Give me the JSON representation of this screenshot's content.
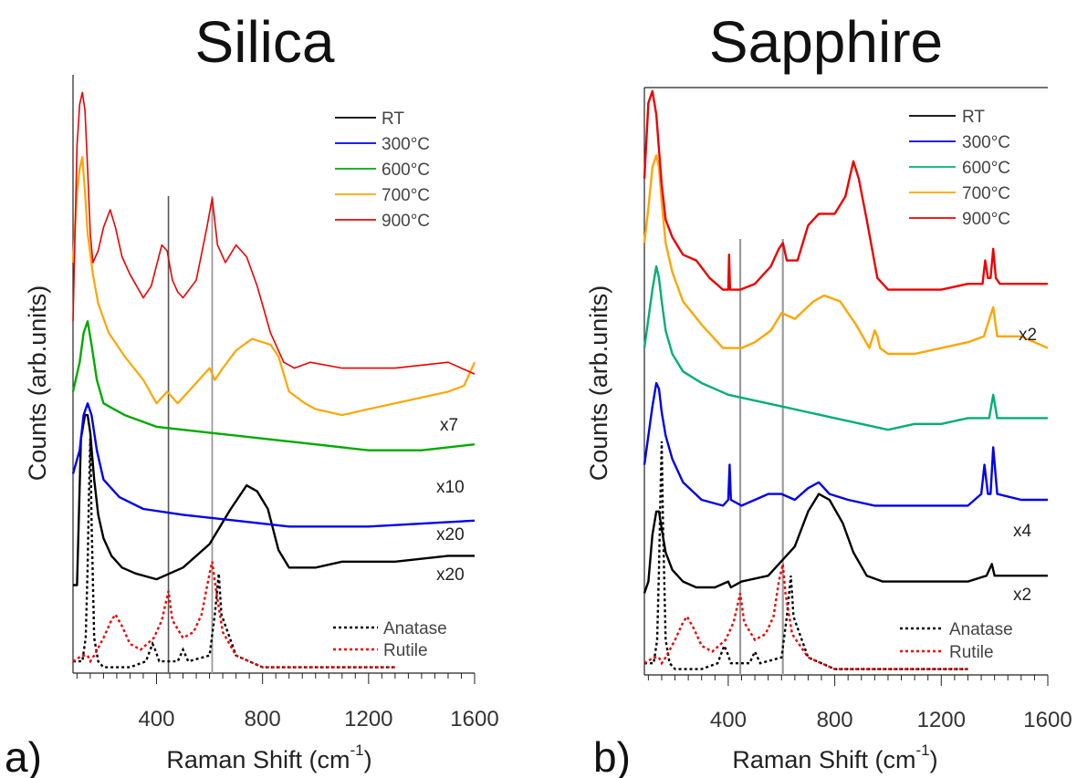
{
  "chart_data": [
    {
      "type": "line",
      "panel": "a)",
      "title": "Silica",
      "xlabel": "Raman Shift (cm",
      "xlabel_sup": "-1",
      "xlabel_end": ")",
      "ylabel": "Counts (arb.units)",
      "xlim": [
        85,
        1600
      ],
      "ylim": [
        0,
        100
      ],
      "x_ticks": [
        400,
        800,
        1200,
        1600
      ],
      "y_ticks": [],
      "frame": "left-bottom",
      "grid": false,
      "reference_lines_x": [
        445,
        610
      ],
      "reference_line_colors": [
        "#555555",
        "#9a9a9a"
      ],
      "legend": {
        "position": "top-right",
        "entries": [
          {
            "label": "RT",
            "color": "#000000"
          },
          {
            "label": "300°C",
            "color": "#0000ee"
          },
          {
            "label": "600°C",
            "color": "#00aa00"
          },
          {
            "label": "700°C",
            "color": "#ffa500"
          },
          {
            "label": "900°C",
            "color": "#ee0000"
          }
        ]
      },
      "reference_legend": {
        "position": "bottom-right",
        "entries": [
          {
            "label": "Anatase",
            "color": "#000000"
          },
          {
            "label": "Rutile",
            "color": "#ee0000"
          }
        ]
      },
      "series": [
        {
          "name": "RT",
          "color": "#000000",
          "scale_label": "x20",
          "x": [
            85,
            100,
            115,
            130,
            140,
            150,
            165,
            180,
            200,
            230,
            270,
            320,
            400,
            500,
            600,
            680,
            740,
            780,
            820,
            860,
            900,
            950,
            1000,
            1100,
            1300,
            1500,
            1600
          ],
          "y": [
            15,
            15,
            40,
            44,
            44,
            41,
            33,
            27,
            23,
            20,
            18,
            17,
            16,
            18,
            22,
            28,
            32,
            31,
            28,
            21,
            18,
            18,
            18,
            19,
            19,
            20,
            20
          ]
        },
        {
          "name": "300°C",
          "color": "#0000ee",
          "scale_label": "x20",
          "x": [
            85,
            110,
            125,
            140,
            155,
            175,
            200,
            260,
            350,
            500,
            700,
            900,
            1200,
            1600
          ],
          "y": [
            34,
            38,
            44,
            46,
            44,
            38,
            33,
            30,
            28,
            27,
            26,
            25,
            25,
            26
          ]
        },
        {
          "name": "600°C",
          "color": "#00aa00",
          "scale_label": "x10",
          "x": [
            85,
            110,
            125,
            140,
            155,
            175,
            200,
            280,
            400,
            600,
            800,
            1000,
            1200,
            1400,
            1600
          ],
          "y": [
            48,
            53,
            58,
            60,
            56,
            50,
            46,
            44,
            42,
            41,
            40,
            39,
            38,
            38,
            39
          ]
        },
        {
          "name": "700°C",
          "color": "#ffa500",
          "scale_label": "x7",
          "x": [
            85,
            100,
            110,
            120,
            130,
            140,
            160,
            180,
            220,
            280,
            350,
            400,
            440,
            480,
            560,
            600,
            620,
            650,
            700,
            760,
            830,
            860,
            900,
            960,
            1000,
            1100,
            1200,
            1300,
            1400,
            1500,
            1560,
            1600
          ],
          "y": [
            70,
            82,
            86,
            88,
            82,
            75,
            68,
            63,
            58,
            54,
            50,
            46,
            48,
            46,
            50,
            52,
            50,
            52,
            55,
            57,
            56,
            54,
            48,
            46,
            45,
            44,
            45,
            46,
            47,
            48,
            49,
            53
          ]
        },
        {
          "name": "900°C",
          "color": "#ee0000",
          "scale_label": "",
          "x": [
            85,
            100,
            110,
            120,
            130,
            140,
            150,
            160,
            180,
            200,
            225,
            245,
            270,
            300,
            350,
            380,
            420,
            440,
            460,
            480,
            500,
            550,
            590,
            610,
            630,
            660,
            700,
            740,
            780,
            830,
            880,
            920,
            980,
            1100,
            1300,
            1500,
            1600
          ],
          "y": [
            60,
            90,
            97,
            99,
            96,
            86,
            75,
            70,
            72,
            76,
            79,
            76,
            71,
            68,
            64,
            66,
            73,
            72,
            67,
            65,
            64,
            67,
            76,
            81,
            73,
            70,
            73,
            71,
            66,
            58,
            53,
            52,
            53,
            52,
            52,
            53,
            51
          ]
        }
      ],
      "references": [
        {
          "name": "Anatase",
          "color": "#000000",
          "style": "dotted",
          "x": [
            85,
            120,
            133,
            140,
            145,
            150,
            155,
            165,
            180,
            200,
            250,
            300,
            360,
            385,
            395,
            410,
            480,
            500,
            520,
            600,
            620,
            635,
            645,
            700,
            800,
            1000,
            1200,
            1300
          ],
          "y": [
            2,
            2,
            6,
            18,
            30,
            40,
            26,
            6,
            2,
            1,
            1,
            1,
            2,
            5,
            4,
            2,
            2,
            4,
            2,
            3,
            10,
            17,
            10,
            3,
            1,
            1,
            1,
            1
          ]
        },
        {
          "name": "Rutile",
          "color": "#ee0000",
          "style": "dotted",
          "x": [
            85,
            120,
            140,
            150,
            165,
            200,
            230,
            245,
            270,
            300,
            340,
            390,
            420,
            440,
            445,
            460,
            500,
            540,
            570,
            600,
            610,
            625,
            650,
            700,
            800,
            1000,
            1200,
            1300
          ],
          "y": [
            2,
            3,
            3,
            2,
            3,
            6,
            9,
            10,
            8,
            5,
            4,
            6,
            9,
            13,
            14,
            9,
            6,
            7,
            10,
            17,
            19,
            14,
            7,
            3,
            1,
            1,
            1,
            1
          ]
        }
      ]
    },
    {
      "type": "line",
      "panel": "b)",
      "title": "Sapphire",
      "xlabel": "Raman Shift (cm",
      "xlabel_sup": "-1",
      "xlabel_end": ")",
      "ylabel": "Counts (arb.units)",
      "xlim": [
        85,
        1600
      ],
      "ylim": [
        0,
        100
      ],
      "x_ticks": [
        400,
        800,
        1200,
        1600
      ],
      "y_ticks": [],
      "frame": "left-bottom-top",
      "grid": false,
      "reference_lines_x": [
        445,
        605
      ],
      "reference_line_colors": [
        "#9a9a9a",
        "#9a9a9a"
      ],
      "legend": {
        "position": "top-right",
        "entries": [
          {
            "label": "RT",
            "color": "#000000"
          },
          {
            "label": "300°C",
            "color": "#0000ee"
          },
          {
            "label": "600°C",
            "color": "#00b070"
          },
          {
            "label": "700°C",
            "color": "#ffa500"
          },
          {
            "label": "900°C",
            "color": "#ee0000"
          }
        ]
      },
      "reference_legend": {
        "position": "bottom-right",
        "entries": [
          {
            "label": "Anatase",
            "color": "#000000"
          },
          {
            "label": "Rutile",
            "color": "#ee0000"
          }
        ]
      },
      "series": [
        {
          "name": "RT",
          "color": "#000000",
          "scale_label": "x2",
          "x": [
            85,
            100,
            115,
            130,
            140,
            150,
            165,
            190,
            230,
            280,
            350,
            400,
            410,
            450,
            550,
            650,
            700,
            740,
            780,
            830,
            870,
            920,
            980,
            1100,
            1300,
            1370,
            1390,
            1400,
            1500,
            1600
          ],
          "y": [
            14,
            16,
            24,
            28,
            28,
            25,
            21,
            18,
            16,
            15,
            15,
            16,
            15,
            16,
            17,
            22,
            28,
            31,
            30,
            26,
            21,
            17,
            16,
            16,
            16,
            17,
            19,
            17,
            17,
            17
          ]
        },
        {
          "name": "300°C",
          "color": "#0000ee",
          "scale_label": "x4",
          "x": [
            85,
            100,
            115,
            130,
            140,
            150,
            165,
            190,
            230,
            300,
            380,
            400,
            405,
            410,
            450,
            550,
            600,
            650,
            700,
            740,
            780,
            850,
            950,
            1100,
            1300,
            1350,
            1362,
            1375,
            1385,
            1395,
            1410,
            1500,
            1600
          ],
          "y": [
            36,
            41,
            46,
            50,
            49,
            45,
            41,
            37,
            33,
            30,
            29,
            30,
            36,
            30,
            29,
            31,
            31,
            30,
            32,
            33,
            31,
            30,
            29,
            29,
            29,
            31,
            36,
            31,
            31,
            39,
            31,
            30,
            30
          ]
        },
        {
          "name": "600°C",
          "color": "#00b070",
          "scale_label": "",
          "x": [
            85,
            100,
            115,
            130,
            140,
            150,
            165,
            190,
            230,
            300,
            400,
            500,
            600,
            700,
            800,
            900,
            1000,
            1100,
            1200,
            1300,
            1380,
            1395,
            1410,
            1500,
            1600
          ],
          "y": [
            56,
            61,
            66,
            70,
            68,
            64,
            59,
            55,
            52,
            50,
            48,
            47,
            46,
            45,
            44,
            43,
            42,
            43,
            43,
            44,
            44,
            48,
            44,
            44,
            44
          ]
        },
        {
          "name": "700°C",
          "color": "#ffa500",
          "scale_label": "",
          "x": [
            85,
            100,
            115,
            130,
            140,
            150,
            165,
            190,
            230,
            300,
            380,
            420,
            450,
            500,
            560,
            600,
            650,
            720,
            760,
            820,
            880,
            930,
            950,
            960,
            970,
            1000,
            1100,
            1200,
            1300,
            1360,
            1395,
            1410,
            1500,
            1600
          ],
          "y": [
            74,
            80,
            87,
            89,
            87,
            81,
            74,
            69,
            64,
            60,
            56,
            56,
            56,
            57,
            59,
            62,
            61,
            64,
            65,
            64,
            60,
            56,
            59,
            58,
            56,
            55,
            55,
            56,
            57,
            58,
            63,
            58,
            58,
            56
          ]
        },
        {
          "name": "900°C",
          "color": "#ee0000",
          "scale_label": "x2",
          "x": [
            85,
            100,
            115,
            130,
            140,
            150,
            165,
            190,
            230,
            280,
            330,
            380,
            400,
            403,
            407,
            410,
            445,
            500,
            560,
            590,
            605,
            620,
            660,
            700,
            740,
            800,
            840,
            870,
            890,
            920,
            960,
            1000,
            1100,
            1200,
            1300,
            1355,
            1365,
            1375,
            1385,
            1395,
            1405,
            1420,
            1500,
            1600
          ],
          "y": [
            85,
            98,
            100,
            96,
            90,
            84,
            78,
            75,
            72,
            71,
            68,
            66,
            66,
            72,
            66,
            66,
            66,
            67,
            70,
            73,
            74,
            71,
            71,
            77,
            79,
            79,
            82,
            88,
            85,
            78,
            68,
            66,
            66,
            66,
            67,
            67,
            71,
            68,
            68,
            73,
            68,
            67,
            67,
            67
          ]
        }
      ],
      "references": [
        {
          "name": "Anatase",
          "color": "#000000",
          "style": "dotted",
          "x": [
            85,
            120,
            133,
            140,
            145,
            150,
            155,
            165,
            180,
            200,
            250,
            300,
            360,
            385,
            395,
            410,
            480,
            500,
            520,
            600,
            620,
            635,
            645,
            700,
            800,
            1000,
            1200,
            1300
          ],
          "y": [
            2,
            2,
            6,
            18,
            30,
            40,
            26,
            6,
            2,
            1,
            1,
            1,
            2,
            5,
            4,
            2,
            2,
            4,
            2,
            3,
            10,
            17,
            10,
            3,
            1,
            1,
            1,
            1
          ]
        },
        {
          "name": "Rutile",
          "color": "#ee0000",
          "style": "dotted",
          "x": [
            85,
            120,
            140,
            150,
            165,
            200,
            230,
            245,
            270,
            300,
            340,
            390,
            420,
            440,
            445,
            460,
            500,
            540,
            570,
            590,
            605,
            615,
            640,
            700,
            800,
            1000,
            1200,
            1300
          ],
          "y": [
            2,
            3,
            3,
            2,
            3,
            6,
            9,
            10,
            8,
            5,
            4,
            6,
            9,
            13,
            14,
            9,
            6,
            7,
            10,
            16,
            19,
            14,
            7,
            3,
            1,
            1,
            1,
            1
          ]
        }
      ]
    }
  ]
}
